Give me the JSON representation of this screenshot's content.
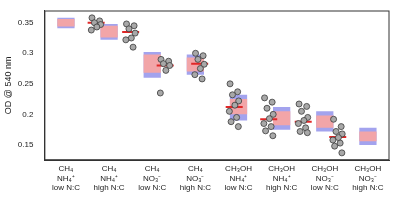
{
  "chart_data": {
    "type": "box",
    "y_label": "OD @ 540 nm",
    "categories": [
      [
        "CH₄",
        "NH₄⁺",
        "low N:C"
      ],
      [
        "CH₄",
        "NH₄⁺",
        "high N:C"
      ],
      [
        "CH₄",
        "NO₃⁻",
        "low N:C"
      ],
      [
        "CH₄",
        "NO₃⁻",
        "high N:C"
      ],
      [
        "CH₃OH",
        "NH₄⁺",
        "low N:C"
      ],
      [
        "CH₃OH",
        "NH₄⁺",
        "high N:C"
      ],
      [
        "CH₃OH",
        "NO₃⁻",
        "low N:C"
      ],
      [
        "CH₃OH",
        "NO₃⁻",
        "high N:C"
      ]
    ],
    "points": [
      [
        0.358,
        0.353,
        0.35,
        0.347,
        0.343,
        0.338
      ],
      [
        0.348,
        0.345,
        0.34,
        0.333,
        0.325,
        0.322,
        0.31
      ],
      [
        0.29,
        0.287,
        0.283,
        0.28,
        0.272,
        0.235
      ],
      [
        0.3,
        0.296,
        0.29,
        0.282,
        0.275,
        0.265,
        0.258
      ],
      [
        0.25,
        0.237,
        0.232,
        0.222,
        0.215,
        0.205,
        0.195,
        0.188,
        0.18
      ],
      [
        0.227,
        0.22,
        0.21,
        0.2,
        0.193,
        0.185,
        0.18,
        0.173,
        0.165
      ],
      [
        0.217,
        0.213,
        0.205,
        0.195,
        0.19,
        0.185,
        0.178,
        0.172,
        0.17
      ],
      [
        0.192,
        0.18,
        0.172,
        0.168,
        0.162,
        0.158,
        0.153,
        0.148,
        0.137
      ]
    ],
    "mean": [
      0.35,
      0.335,
      0.28,
      0.283,
      0.212,
      0.192,
      0.188,
      0.163
    ],
    "ci": [
      [
        0.344,
        0.356
      ],
      [
        0.326,
        0.345
      ],
      [
        0.268,
        0.298
      ],
      [
        0.27,
        0.293
      ],
      [
        0.2,
        0.225
      ],
      [
        0.182,
        0.205
      ],
      [
        0.178,
        0.198
      ],
      [
        0.156,
        0.172
      ]
    ],
    "sd": [
      [
        0.341,
        0.358
      ],
      [
        0.322,
        0.348
      ],
      [
        0.26,
        0.302
      ],
      [
        0.265,
        0.298
      ],
      [
        0.19,
        0.232
      ],
      [
        0.175,
        0.212
      ],
      [
        0.172,
        0.205
      ],
      [
        0.15,
        0.178
      ]
    ],
    "ylim": [
      0.125,
      0.37
    ],
    "yticks": [
      0.15,
      0.2,
      0.25,
      0.3,
      0.35
    ],
    "grid": false
  }
}
